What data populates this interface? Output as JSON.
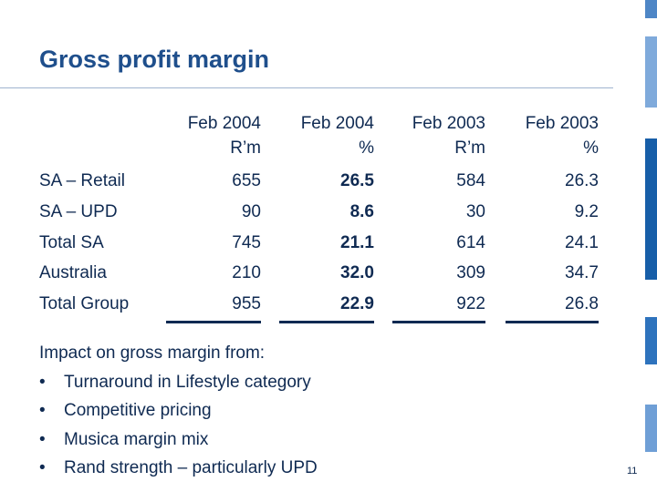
{
  "slide": {
    "title": "Gross profit margin",
    "page_number": "11"
  },
  "table": {
    "columns": [
      {
        "header_line1": "Feb 2004",
        "header_line2": "R’m",
        "bold": false,
        "values": [
          "655",
          "90",
          "745",
          "210",
          "955"
        ]
      },
      {
        "header_line1": "Feb 2004",
        "header_line2": "%",
        "bold": true,
        "values": [
          "26.5",
          "8.6",
          "21.1",
          "32.0",
          "22.9"
        ]
      },
      {
        "header_line1": "Feb 2003",
        "header_line2": "R’m",
        "bold": false,
        "values": [
          "584",
          "30",
          "614",
          "309",
          "922"
        ]
      },
      {
        "header_line1": "Feb 2003",
        "header_line2": "%",
        "bold": false,
        "values": [
          "26.3",
          "9.2",
          "24.1",
          "34.7",
          "26.8"
        ]
      }
    ],
    "rows": [
      "SA – Retail",
      "SA – UPD",
      "Total SA",
      "Australia",
      "Total Group"
    ]
  },
  "notes": {
    "intro": "Impact on gross margin from:",
    "bullet_glyph": "•",
    "items": [
      "Turnaround in Lifestyle category",
      "Competitive pricing",
      "Musica margin mix",
      "Rand strength – particularly UPD"
    ]
  },
  "colors": {
    "title": "#1f4f8c",
    "text": "#0f2a52",
    "accent_bars": [
      "#4e86c6",
      "#7faadb",
      "#175ea8",
      "#2e73bd",
      "#6f9fd6"
    ]
  }
}
